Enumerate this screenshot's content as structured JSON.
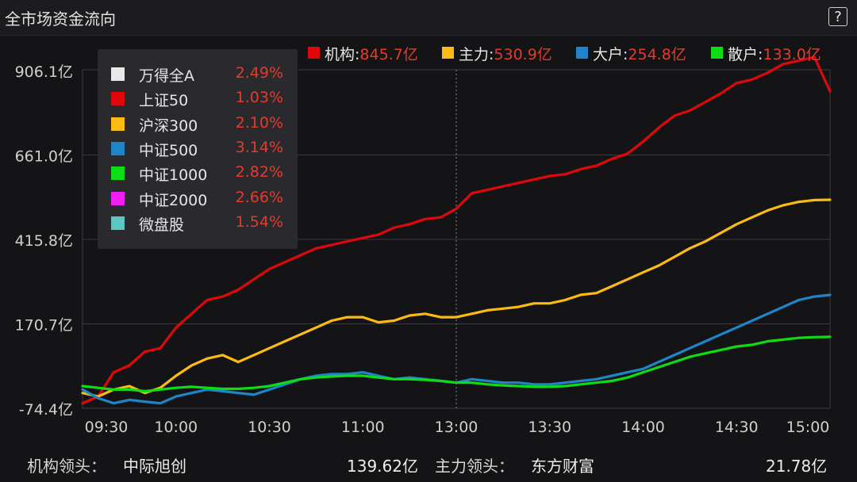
{
  "window": {
    "title": "全市场资金流向",
    "help_label": "?"
  },
  "colors": {
    "institution": "#e0070a",
    "main": "#fbbb12",
    "large": "#1e86c8",
    "retail": "#0edc14",
    "value_red": "#e23c2e",
    "grid": "#3a3a3f"
  },
  "series_legend": [
    {
      "name": "机构",
      "sep": ":",
      "value": "845.7亿",
      "color": "#e0070a"
    },
    {
      "name": "主力",
      "sep": ":",
      "value": "530.9亿",
      "color": "#fbbb12"
    },
    {
      "name": "大户",
      "sep": ":",
      "value": "254.8亿",
      "color": "#1e86c8"
    },
    {
      "name": "散户",
      "sep": ":",
      "value": "133.0亿",
      "color": "#0edc14"
    }
  ],
  "index_panel": [
    {
      "name": "万得全A",
      "change": "2.49%",
      "color": "#e8e8e8"
    },
    {
      "name": "上证50",
      "change": "1.03%",
      "color": "#e0070a"
    },
    {
      "name": "沪深300",
      "change": "2.10%",
      "color": "#fbbb12"
    },
    {
      "name": "中证500",
      "change": "3.14%",
      "color": "#1e86c8"
    },
    {
      "name": "中证1000",
      "change": "2.82%",
      "color": "#0edc14"
    },
    {
      "name": "中证2000",
      "change": "2.66%",
      "color": "#f21ef2"
    },
    {
      "name": "微盘股",
      "change": "1.54%",
      "color": "#5fc4c4"
    }
  ],
  "footer": {
    "inst_label": "机构领头：",
    "inst_stock": "中际旭创",
    "inst_value": "139.62亿",
    "main_label": "主力领头：",
    "main_stock": "东方财富",
    "main_value": "21.78亿"
  },
  "chart_data": {
    "type": "line",
    "title": "全市场资金流向",
    "xlabel": "",
    "ylabel": "",
    "x_ticks": [
      "09:30",
      "10:00",
      "10:30",
      "11:00",
      "13:00",
      "13:30",
      "14:00",
      "14:30",
      "15:00"
    ],
    "y_ticks": [
      "906.1亿",
      "661.0亿",
      "415.8亿",
      "170.7亿",
      "-74.4亿"
    ],
    "y_tick_values": [
      906.1,
      661.0,
      415.8,
      170.7,
      -74.4
    ],
    "ylim": [
      -74.4,
      906.1
    ],
    "divider_at": "13:00",
    "grid": true,
    "legend_position": "top-right",
    "series": [
      {
        "name": "机构",
        "color": "#e0070a",
        "x": [
          "09:30",
          "09:35",
          "09:40",
          "09:45",
          "09:50",
          "09:55",
          "10:00",
          "10:05",
          "10:10",
          "10:15",
          "10:20",
          "10:25",
          "10:30",
          "10:35",
          "10:40",
          "10:45",
          "10:50",
          "10:55",
          "11:00",
          "11:05",
          "11:10",
          "11:15",
          "11:20",
          "11:25",
          "11:30",
          "13:05",
          "13:10",
          "13:15",
          "13:20",
          "13:25",
          "13:30",
          "13:35",
          "13:40",
          "13:45",
          "13:50",
          "13:55",
          "14:00",
          "14:05",
          "14:10",
          "14:15",
          "14:20",
          "14:25",
          "14:30",
          "14:35",
          "14:40",
          "14:45",
          "14:50",
          "14:55",
          "15:00"
        ],
        "y": [
          -60,
          -40,
          30,
          50,
          90,
          100,
          160,
          200,
          240,
          250,
          270,
          300,
          330,
          350,
          370,
          390,
          400,
          410,
          420,
          430,
          450,
          460,
          475,
          480,
          505,
          550,
          560,
          570,
          580,
          590,
          600,
          605,
          620,
          630,
          650,
          665,
          700,
          740,
          775,
          790,
          815,
          840,
          870,
          880,
          900,
          925,
          935,
          945,
          845.7
        ]
      },
      {
        "name": "主力",
        "color": "#fbbb12",
        "x": [
          "09:30",
          "09:35",
          "09:40",
          "09:45",
          "09:50",
          "09:55",
          "10:00",
          "10:05",
          "10:10",
          "10:15",
          "10:20",
          "10:25",
          "10:30",
          "10:35",
          "10:40",
          "10:45",
          "10:50",
          "10:55",
          "11:00",
          "11:05",
          "11:10",
          "11:15",
          "11:20",
          "11:25",
          "11:30",
          "13:05",
          "13:10",
          "13:15",
          "13:20",
          "13:25",
          "13:30",
          "13:35",
          "13:40",
          "13:45",
          "13:50",
          "13:55",
          "14:00",
          "14:05",
          "14:10",
          "14:15",
          "14:20",
          "14:25",
          "14:30",
          "14:35",
          "14:40",
          "14:45",
          "14:50",
          "14:55",
          "15:00"
        ],
        "y": [
          -30,
          -40,
          -20,
          -10,
          -30,
          -15,
          20,
          50,
          70,
          80,
          60,
          80,
          100,
          120,
          140,
          160,
          180,
          190,
          190,
          175,
          180,
          195,
          200,
          190,
          190,
          200,
          210,
          215,
          220,
          230,
          230,
          240,
          255,
          260,
          280,
          300,
          320,
          340,
          365,
          390,
          410,
          435,
          460,
          480,
          500,
          515,
          525,
          530,
          530.9
        ]
      },
      {
        "name": "大户",
        "color": "#1e86c8",
        "x": [
          "09:30",
          "09:35",
          "09:40",
          "09:45",
          "09:50",
          "09:55",
          "10:00",
          "10:05",
          "10:10",
          "10:15",
          "10:20",
          "10:25",
          "10:30",
          "10:35",
          "10:40",
          "10:45",
          "10:50",
          "10:55",
          "11:00",
          "11:05",
          "11:10",
          "11:15",
          "11:20",
          "11:25",
          "11:30",
          "13:05",
          "13:10",
          "13:15",
          "13:20",
          "13:25",
          "13:30",
          "13:35",
          "13:40",
          "13:45",
          "13:50",
          "13:55",
          "14:00",
          "14:05",
          "14:10",
          "14:15",
          "14:20",
          "14:25",
          "14:30",
          "14:35",
          "14:40",
          "14:45",
          "14:50",
          "14:55",
          "15:00"
        ],
        "y": [
          -20,
          -45,
          -60,
          -50,
          -55,
          -60,
          -40,
          -30,
          -20,
          -25,
          -30,
          -35,
          -20,
          -5,
          10,
          20,
          25,
          25,
          30,
          20,
          10,
          15,
          10,
          5,
          0,
          10,
          5,
          0,
          0,
          -5,
          -5,
          0,
          5,
          10,
          20,
          30,
          40,
          60,
          80,
          100,
          120,
          140,
          160,
          180,
          200,
          220,
          240,
          250,
          254.8
        ]
      },
      {
        "name": "散户",
        "color": "#0edc14",
        "x": [
          "09:30",
          "09:35",
          "09:40",
          "09:45",
          "09:50",
          "09:55",
          "10:00",
          "10:05",
          "10:10",
          "10:15",
          "10:20",
          "10:25",
          "10:30",
          "10:35",
          "10:40",
          "10:45",
          "10:50",
          "10:55",
          "11:00",
          "11:05",
          "11:10",
          "11:15",
          "11:20",
          "11:25",
          "11:30",
          "13:05",
          "13:10",
          "13:15",
          "13:20",
          "13:25",
          "13:30",
          "13:35",
          "13:40",
          "13:45",
          "13:50",
          "13:55",
          "14:00",
          "14:05",
          "14:10",
          "14:15",
          "14:20",
          "14:25",
          "14:30",
          "14:35",
          "14:40",
          "14:45",
          "14:50",
          "14:55",
          "15:00"
        ],
        "y": [
          -10,
          -15,
          -20,
          -20,
          -25,
          -20,
          -15,
          -12,
          -15,
          -18,
          -18,
          -15,
          -10,
          0,
          10,
          15,
          18,
          20,
          20,
          15,
          10,
          10,
          8,
          5,
          0,
          0,
          -5,
          -8,
          -10,
          -12,
          -12,
          -10,
          -5,
          0,
          5,
          15,
          30,
          45,
          60,
          75,
          85,
          95,
          105,
          110,
          120,
          125,
          130,
          132,
          133.0
        ]
      }
    ]
  }
}
